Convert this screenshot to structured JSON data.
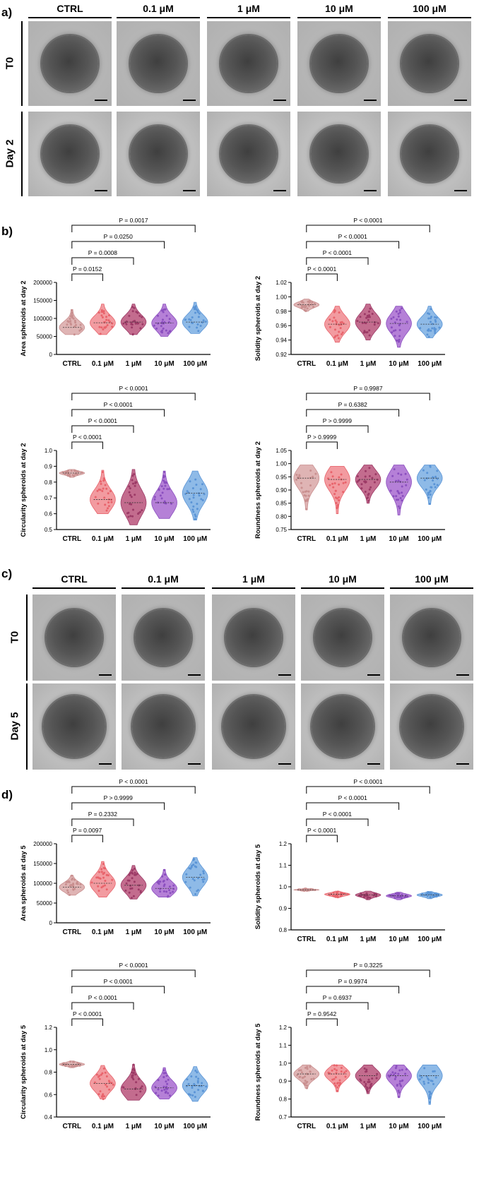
{
  "panels": {
    "a": {
      "letter": "a)",
      "columns": [
        "CTRL",
        "0.1 μM",
        "1 μM",
        "10 μM",
        "100 μM"
      ],
      "rows": [
        "T0",
        "Day 2"
      ]
    },
    "b": {
      "letter": "b)"
    },
    "c": {
      "letter": "c)",
      "columns": [
        "CTRL",
        "0.1 μM",
        "1 μM",
        "10 μM",
        "100 μM"
      ],
      "rows": [
        "T0",
        "Day 5"
      ]
    },
    "d": {
      "letter": "d)"
    }
  },
  "chart_data": [
    {
      "type": "violin",
      "ylabel": "Area spheroids at day 2",
      "categories": [
        "CTRL",
        "0.1 μM",
        "1 μM",
        "10 μM",
        "100 μM"
      ],
      "ylim": [
        0,
        200000
      ],
      "yticks": [
        0,
        50000,
        100000,
        150000,
        200000
      ],
      "ytick_labels": [
        "0",
        "50000",
        "100000",
        "150000",
        "200000"
      ],
      "range": [
        [
          55000,
          125000
        ],
        [
          55000,
          140000
        ],
        [
          55000,
          140000
        ],
        [
          50000,
          140000
        ],
        [
          58000,
          145000
        ]
      ],
      "median": [
        75000,
        88000,
        90000,
        87000,
        90000
      ],
      "comparisons": [
        {
          "to": 1,
          "label": "P = 0.0152"
        },
        {
          "to": 2,
          "label": "P = 0.0008"
        },
        {
          "to": 3,
          "label": "P = 0.0250"
        },
        {
          "to": 4,
          "label": "P = 0.0017"
        }
      ]
    },
    {
      "type": "violin",
      "ylabel": "Solidity spheroids at day 2",
      "categories": [
        "CTRL",
        "0.1 μM",
        "1 μM",
        "10 μM",
        "100 μM"
      ],
      "ylim": [
        0.92,
        1.02
      ],
      "yticks": [
        0.92,
        0.94,
        0.96,
        0.98,
        1.0,
        1.02
      ],
      "ytick_labels": [
        "0.92",
        "0.94",
        "0.96",
        "0.98",
        "1.00",
        "1.02"
      ],
      "range": [
        [
          0.98,
          0.997
        ],
        [
          0.937,
          0.987
        ],
        [
          0.94,
          0.99
        ],
        [
          0.93,
          0.987
        ],
        [
          0.943,
          0.987
        ]
      ],
      "median": [
        0.989,
        0.962,
        0.965,
        0.963,
        0.962
      ],
      "comparisons": [
        {
          "to": 1,
          "label": "P < 0.0001"
        },
        {
          "to": 2,
          "label": "P < 0.0001"
        },
        {
          "to": 3,
          "label": "P < 0.0001"
        },
        {
          "to": 4,
          "label": "P < 0.0001"
        }
      ]
    },
    {
      "type": "violin",
      "ylabel": "Circularity spheroids at day 2",
      "categories": [
        "CTRL",
        "0.1 μM",
        "1 μM",
        "10 μM",
        "100 μM"
      ],
      "ylim": [
        0.5,
        1.0
      ],
      "yticks": [
        0.5,
        0.6,
        0.7,
        0.8,
        0.9,
        1.0
      ],
      "ytick_labels": [
        "0.5",
        "0.6",
        "0.7",
        "0.8",
        "0.9",
        "1.0"
      ],
      "range": [
        [
          0.83,
          0.88
        ],
        [
          0.6,
          0.875
        ],
        [
          0.53,
          0.88
        ],
        [
          0.57,
          0.87
        ],
        [
          0.56,
          0.87
        ]
      ],
      "median": [
        0.857,
        0.69,
        0.67,
        0.67,
        0.73
      ],
      "comparisons": [
        {
          "to": 1,
          "label": "P < 0.0001"
        },
        {
          "to": 2,
          "label": "P < 0.0001"
        },
        {
          "to": 3,
          "label": "P < 0.0001"
        },
        {
          "to": 4,
          "label": "P < 0.0001"
        }
      ]
    },
    {
      "type": "violin",
      "ylabel": "Roundness spheroids at day 2",
      "categories": [
        "CTRL",
        "0.1 μM",
        "1 μM",
        "10 μM",
        "100 μM"
      ],
      "ylim": [
        0.75,
        1.05
      ],
      "yticks": [
        0.75,
        0.8,
        0.85,
        0.9,
        0.95,
        1.0,
        1.05
      ],
      "ytick_labels": [
        "0.75",
        "0.80",
        "0.85",
        "0.90",
        "0.95",
        "1.00",
        "1.05"
      ],
      "range": [
        [
          0.825,
          0.995
        ],
        [
          0.81,
          0.99
        ],
        [
          0.85,
          0.995
        ],
        [
          0.805,
          0.995
        ],
        [
          0.845,
          0.995
        ]
      ],
      "median": [
        0.945,
        0.94,
        0.94,
        0.93,
        0.945
      ],
      "comparisons": [
        {
          "to": 1,
          "label": "P > 0.9999"
        },
        {
          "to": 2,
          "label": "P > 0.9999"
        },
        {
          "to": 3,
          "label": "P = 0.6382"
        },
        {
          "to": 4,
          "label": "P = 0.9987"
        }
      ]
    },
    {
      "type": "violin",
      "ylabel": "Area spheroids at day 5",
      "categories": [
        "CTRL",
        "0.1 μM",
        "1 μM",
        "10 μM",
        "100 μM"
      ],
      "ylim": [
        0,
        200000
      ],
      "yticks": [
        0,
        50000,
        100000,
        150000,
        200000
      ],
      "ytick_labels": [
        "0",
        "50000",
        "100000",
        "150000",
        "200000"
      ],
      "range": [
        [
          70000,
          120000
        ],
        [
          65000,
          155000
        ],
        [
          60000,
          145000
        ],
        [
          65000,
          135000
        ],
        [
          68000,
          165000
        ]
      ],
      "median": [
        90000,
        100000,
        95000,
        87000,
        115000
      ],
      "comparisons": [
        {
          "to": 1,
          "label": "P = 0.0097"
        },
        {
          "to": 2,
          "label": "P = 0.2332"
        },
        {
          "to": 3,
          "label": "P > 0.9999"
        },
        {
          "to": 4,
          "label": "P < 0.0001"
        }
      ]
    },
    {
      "type": "violin",
      "ylabel": "Solidity spheroids at day 5",
      "categories": [
        "CTRL",
        "0.1 μM",
        "1 μM",
        "10 μM",
        "100 μM"
      ],
      "ylim": [
        0.8,
        1.2
      ],
      "yticks": [
        0.8,
        0.9,
        1.0,
        1.1,
        1.2
      ],
      "ytick_labels": [
        "0.8",
        "0.9",
        "1.0",
        "1.1",
        "1.2"
      ],
      "range": [
        [
          0.98,
          0.992
        ],
        [
          0.95,
          0.98
        ],
        [
          0.94,
          0.98
        ],
        [
          0.94,
          0.975
        ],
        [
          0.945,
          0.978
        ]
      ],
      "median": [
        0.986,
        0.965,
        0.962,
        0.958,
        0.962
      ],
      "comparisons": [
        {
          "to": 1,
          "label": "P < 0.0001"
        },
        {
          "to": 2,
          "label": "P < 0.0001"
        },
        {
          "to": 3,
          "label": "P < 0.0001"
        },
        {
          "to": 4,
          "label": "P < 0.0001"
        }
      ]
    },
    {
      "type": "violin",
      "ylabel": "Circularity spheroids at day 5",
      "categories": [
        "CTRL",
        "0.1 μM",
        "1 μM",
        "10 μM",
        "100 μM"
      ],
      "ylim": [
        0.4,
        1.2
      ],
      "yticks": [
        0.4,
        0.6,
        0.8,
        1.0,
        1.2
      ],
      "ytick_labels": [
        "0.4",
        "0.6",
        "0.8",
        "1.0",
        "1.2"
      ],
      "range": [
        [
          0.84,
          0.9
        ],
        [
          0.56,
          0.86
        ],
        [
          0.55,
          0.87
        ],
        [
          0.56,
          0.84
        ],
        [
          0.54,
          0.85
        ]
      ],
      "median": [
        0.87,
        0.7,
        0.65,
        0.66,
        0.68
      ],
      "comparisons": [
        {
          "to": 1,
          "label": "P < 0.0001"
        },
        {
          "to": 2,
          "label": "P < 0.0001"
        },
        {
          "to": 3,
          "label": "P < 0.0001"
        },
        {
          "to": 4,
          "label": "P < 0.0001"
        }
      ]
    },
    {
      "type": "violin",
      "ylabel": "Roundness spheroids at day 5",
      "categories": [
        "CTRL",
        "0.1 μM",
        "1 μM",
        "10 μM",
        "100 μM"
      ],
      "ylim": [
        0.7,
        1.2
      ],
      "yticks": [
        0.7,
        0.8,
        0.9,
        1.0,
        1.1,
        1.2
      ],
      "ytick_labels": [
        "0.7",
        "0.8",
        "0.9",
        "1.0",
        "1.1",
        "1.2"
      ],
      "range": [
        [
          0.86,
          0.99
        ],
        [
          0.84,
          0.99
        ],
        [
          0.83,
          0.99
        ],
        [
          0.81,
          0.99
        ],
        [
          0.77,
          0.99
        ]
      ],
      "median": [
        0.94,
        0.94,
        0.93,
        0.93,
        0.93
      ],
      "comparisons": [
        {
          "to": 1,
          "label": "P = 0.9542"
        },
        {
          "to": 2,
          "label": "P = 0.6937"
        },
        {
          "to": 3,
          "label": "P = 0.9974"
        },
        {
          "to": 4,
          "label": "P = 0.3225"
        }
      ]
    }
  ],
  "colors": {
    "fills": [
      "#d9a7a7",
      "#f08a8f",
      "#b8527a",
      "#a86ad0",
      "#7aaee3"
    ],
    "dots": [
      "#c98f8f",
      "#e8636b",
      "#9c3a66",
      "#8b4fbf",
      "#5a94d6"
    ],
    "tile_background": "#b9b9b9",
    "spheroid": "#5a5a5a"
  }
}
